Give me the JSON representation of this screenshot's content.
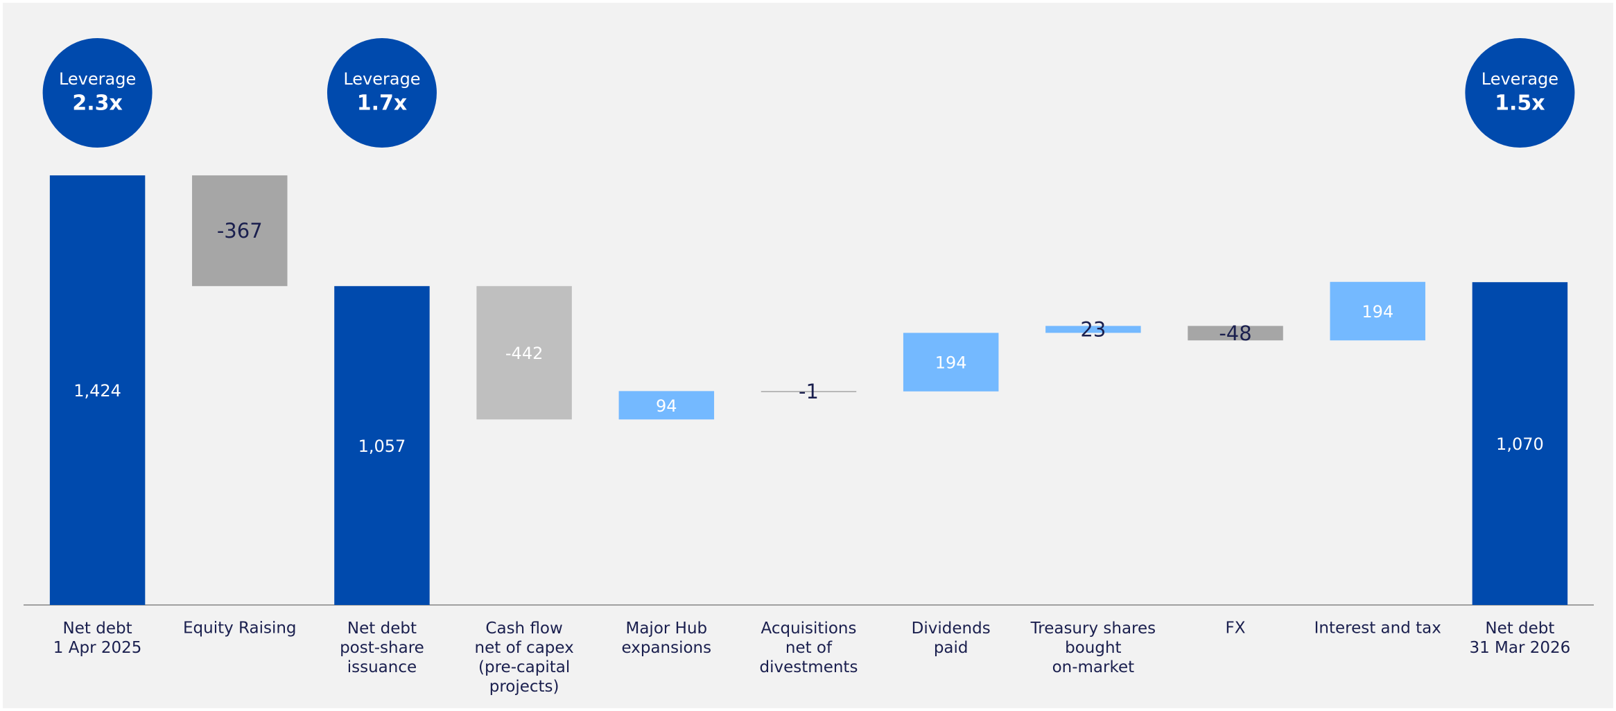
{
  "chart_data": {
    "type": "waterfall",
    "categories": [
      "Net debt\n1 Apr 2025",
      "Equity Raising",
      "Net debt\npost-share\nissuance",
      "Cash flow\nnet of capex\n(pre-capital\nprojects)",
      "Major Hub\nexpansions",
      "Acquisitions\nnet of\ndivestments",
      "Dividends\npaid",
      "Treasury shares\nbought\non-market",
      "FX",
      "Interest and tax",
      "Net debt\n31 Mar 2026"
    ],
    "values": [
      1424,
      -367,
      1057,
      -442,
      94,
      -1,
      194,
      23,
      -48,
      194,
      1070
    ],
    "value_labels": [
      "1,424",
      "-367",
      "1,057",
      "-442",
      "94",
      "-1",
      "194",
      "23",
      "-48",
      "194",
      "1,070"
    ],
    "is_total": [
      true,
      false,
      true,
      false,
      false,
      false,
      false,
      false,
      false,
      false,
      true
    ],
    "colors": [
      "#004aad",
      "#a6a6a6",
      "#004aad",
      "#bfbfbf",
      "#74b9ff",
      "#a6a6a6",
      "#74b9ff",
      "#74b9ff",
      "#a6a6a6",
      "#74b9ff",
      "#004aad"
    ],
    "label_colors": [
      "#ffffff",
      "#1a1f4e",
      "#ffffff",
      "#ffffff",
      "#ffffff",
      "#1a1f4e",
      "#ffffff",
      "#1a1f4e",
      "#1a1f4e",
      "#ffffff",
      "#ffffff"
    ],
    "leverage_title": "Leverage",
    "leverage": [
      "2.3x",
      null,
      "1.7x",
      null,
      null,
      null,
      null,
      null,
      null,
      null,
      "1.5x"
    ],
    "leverage_color": "#004aad",
    "ylim": [
      0,
      1500
    ]
  }
}
